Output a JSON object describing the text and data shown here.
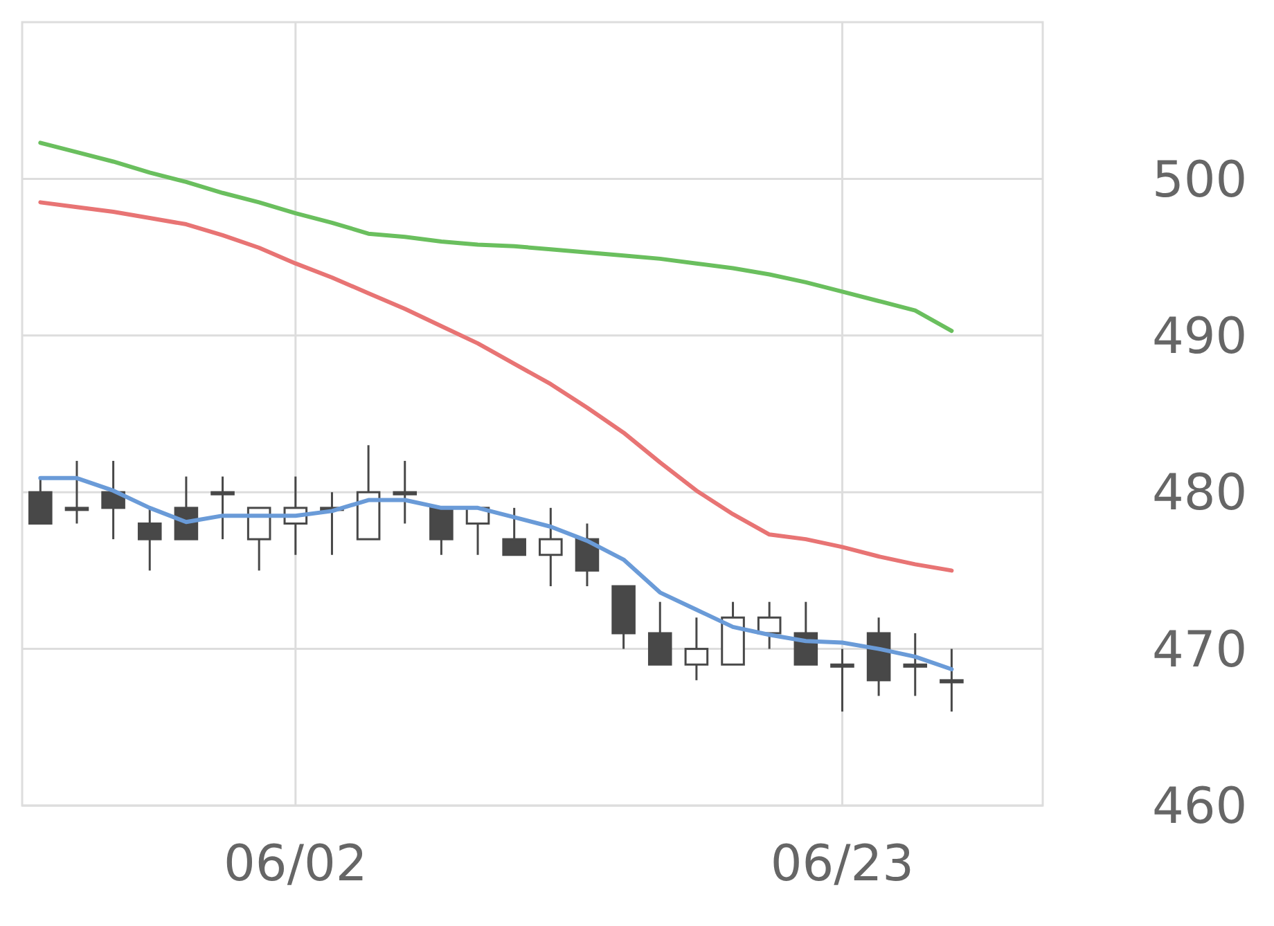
{
  "chart_data": {
    "type": "candlestick",
    "color": "#484848",
    "categories": [
      null,
      null,
      null,
      null,
      null,
      null,
      null,
      "06/02",
      null,
      null,
      null,
      null,
      null,
      null,
      null,
      null,
      null,
      null,
      null,
      null,
      null,
      null,
      "06/23",
      null,
      null,
      null,
      null,
      null
    ],
    "ohlc": [
      [
        480,
        481,
        478,
        478
      ],
      [
        479,
        482,
        478,
        479
      ],
      [
        480,
        482,
        477,
        479
      ],
      [
        478,
        479,
        475,
        477
      ],
      [
        479,
        481,
        477,
        477
      ],
      [
        480,
        481,
        477,
        480
      ],
      [
        477,
        479,
        475,
        479
      ],
      [
        478,
        481,
        476,
        479
      ],
      [
        479,
        480,
        476,
        479
      ],
      [
        477,
        483,
        477,
        480
      ],
      [
        480,
        482,
        478,
        480
      ],
      [
        479,
        479,
        476,
        477
      ],
      [
        478,
        479,
        476,
        479
      ],
      [
        477,
        479,
        476,
        476
      ],
      [
        476,
        479,
        474,
        477
      ],
      [
        477,
        478,
        474,
        475
      ],
      [
        474,
        474,
        470,
        471
      ],
      [
        471,
        473,
        469,
        469
      ],
      [
        469,
        472,
        468,
        470
      ],
      [
        469,
        473,
        469,
        472
      ],
      [
        471,
        473,
        470,
        472
      ],
      [
        471,
        473,
        469,
        469
      ],
      [
        469,
        470,
        466,
        469
      ],
      [
        471,
        472,
        467,
        468
      ],
      [
        469,
        471,
        467,
        469
      ],
      [
        468,
        470,
        466,
        468
      ],
      null,
      null
    ],
    "series": [
      {
        "type": "line",
        "color": "#6a9bd8",
        "values": [
          480.9,
          480.9,
          480.1,
          479.0,
          478.1,
          478.5,
          478.5,
          478.5,
          478.8,
          479.5,
          479.5,
          479.0,
          479.0,
          478.4,
          477.8,
          476.9,
          475.7,
          473.6,
          472.5,
          471.4,
          470.9,
          470.5,
          470.4,
          470.0,
          469.5,
          468.7,
          null,
          null
        ]
      },
      {
        "type": "line",
        "color": "#e87474",
        "values": [
          498.5,
          498.2,
          497.9,
          497.5,
          497.1,
          496.4,
          495.6,
          494.6,
          493.7,
          492.7,
          491.7,
          490.6,
          489.5,
          488.2,
          486.9,
          485.4,
          483.8,
          481.9,
          480.1,
          478.6,
          477.3,
          477.0,
          476.5,
          475.9,
          475.4,
          475.0,
          null,
          null
        ]
      },
      {
        "type": "line",
        "color": "#6abf5e",
        "values": [
          502.3,
          501.7,
          501.1,
          500.4,
          499.8,
          499.1,
          498.5,
          497.8,
          497.2,
          496.5,
          496.3,
          496.0,
          495.8,
          495.7,
          495.5,
          495.3,
          495.1,
          494.9,
          494.6,
          494.3,
          493.9,
          493.4,
          492.8,
          492.2,
          491.6,
          490.3,
          null,
          null
        ]
      }
    ],
    "ylim": [
      460,
      510
    ],
    "yticks": [
      460,
      470,
      480,
      490,
      500
    ],
    "grid": true
  }
}
